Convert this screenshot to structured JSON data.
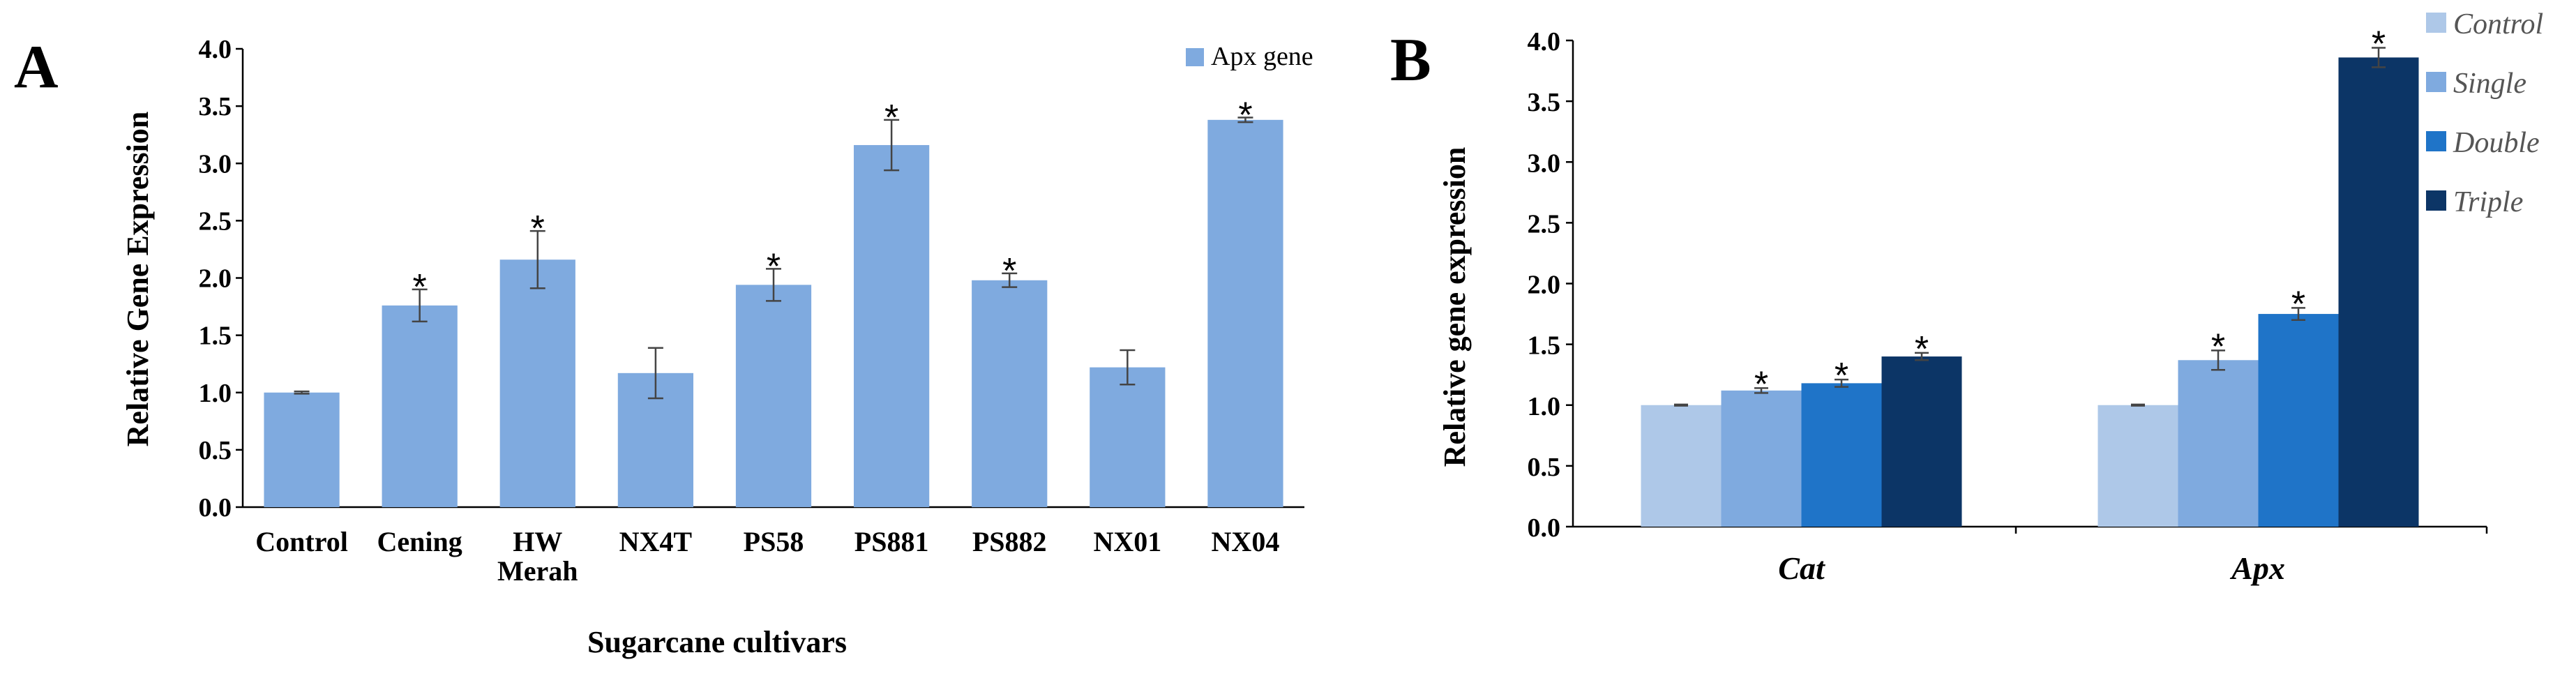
{
  "chart_data": [
    {
      "panel": "A",
      "type": "bar",
      "categories": [
        [
          "Control"
        ],
        [
          "Cening"
        ],
        [
          "HW",
          "Merah"
        ],
        [
          "NX4T"
        ],
        [
          "PS58"
        ],
        [
          "PS881"
        ],
        [
          "PS882"
        ],
        [
          "NX01"
        ],
        [
          "NX04"
        ]
      ],
      "series": [
        {
          "name": "Apx gene",
          "color": "#7faadf",
          "values": [
            1.0,
            1.76,
            2.16,
            1.17,
            1.94,
            3.16,
            1.98,
            1.22,
            3.38
          ],
          "errors": [
            0.01,
            0.14,
            0.25,
            0.22,
            0.14,
            0.22,
            0.06,
            0.15,
            0.02
          ],
          "significant": [
            false,
            true,
            true,
            false,
            true,
            true,
            true,
            false,
            true
          ]
        }
      ],
      "significance_marker": "*",
      "xlabel": "Sugarcane cultivars",
      "ylabel": "Relative Gene Expression",
      "ylim": [
        0,
        4.0
      ],
      "yticks": [
        "0.0",
        "0.5",
        "1.0",
        "1.5",
        "2.0",
        "2.5",
        "3.0",
        "3.5",
        "4.0"
      ],
      "legend_position": "top-right",
      "grid": false
    },
    {
      "panel": "B",
      "type": "bar",
      "categories": [
        "Cat",
        "Apx"
      ],
      "series": [
        {
          "name": "Control",
          "color": "#aec8e8",
          "values": [
            1.0,
            1.0
          ],
          "errors": [
            0.005,
            0.005
          ],
          "significant": [
            false,
            false
          ]
        },
        {
          "name": "Single",
          "color": "#7faadf",
          "values": [
            1.12,
            1.37
          ],
          "errors": [
            0.02,
            0.08
          ],
          "significant": [
            true,
            true
          ]
        },
        {
          "name": "Double",
          "color": "#1f74c8",
          "values": [
            1.18,
            1.75
          ],
          "errors": [
            0.03,
            0.05
          ],
          "significant": [
            true,
            true
          ]
        },
        {
          "name": "Triple",
          "color": "#0c3566",
          "values": [
            1.4,
            3.86
          ],
          "errors": [
            0.03,
            0.08
          ],
          "significant": [
            true,
            true
          ]
        }
      ],
      "significance_marker": "*",
      "xlabel": "",
      "ylabel": "Relative gene expression",
      "ylim": [
        0,
        4.0
      ],
      "yticks": [
        "0.0",
        "0.5",
        "1.0",
        "1.5",
        "2.0",
        "2.5",
        "3.0",
        "3.5",
        "4.0"
      ],
      "legend_position": "top-right",
      "grid": false
    }
  ]
}
